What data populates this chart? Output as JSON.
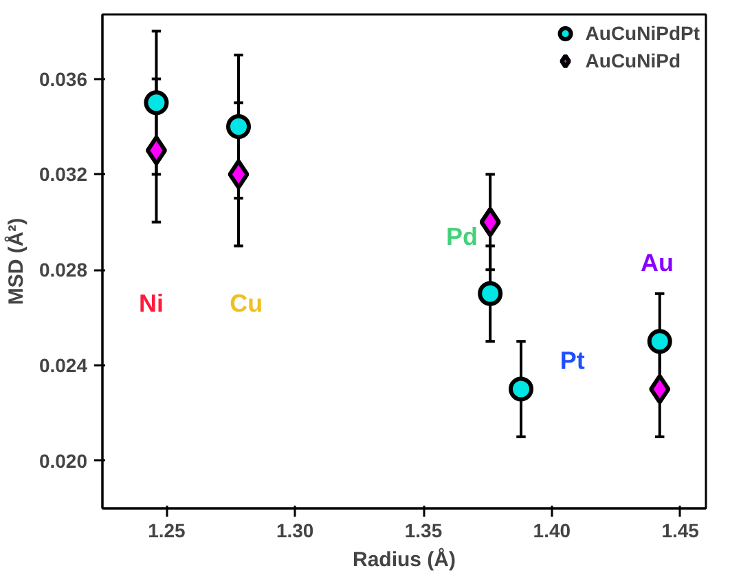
{
  "chart_data": {
    "type": "scatter",
    "xlabel": "Radius (Å)",
    "ylabel": "MSD (Å²)",
    "series": [
      {
        "name": "AuCuNiPdPt",
        "color": "#00e5e5",
        "marker": "circle",
        "x": [
          1.246,
          1.278,
          1.376,
          1.388,
          1.442
        ],
        "values": [
          0.035,
          0.034,
          0.027,
          0.023,
          0.025
        ],
        "errors": [
          0.003,
          0.003,
          0.002,
          0.002,
          0.002
        ]
      },
      {
        "name": "AuCuNiPd",
        "color": "#ff00ff",
        "marker": "diamond",
        "x": [
          1.246,
          1.278,
          1.376,
          1.442
        ],
        "values": [
          0.033,
          0.032,
          0.03,
          0.023
        ],
        "errors": [
          0.003,
          0.003,
          0.002,
          0.002
        ]
      }
    ],
    "annotations": [
      "Ni",
      "Cu",
      "Pd",
      "Pt",
      "Au"
    ],
    "xlim": [
      1.225,
      1.46
    ],
    "ylim": [
      0.018,
      0.0387
    ],
    "xticks": [
      {
        "value": 1.25,
        "label": "1.25"
      },
      {
        "value": 1.3,
        "label": "1.30"
      },
      {
        "value": 1.35,
        "label": "1.35"
      },
      {
        "value": 1.4,
        "label": "1.40"
      },
      {
        "value": 1.45,
        "label": "1.45"
      }
    ],
    "yticks": [
      {
        "value": 0.02,
        "label": "0.020"
      },
      {
        "value": 0.024,
        "label": "0.024"
      },
      {
        "value": 0.028,
        "label": "0.028"
      },
      {
        "value": 0.032,
        "label": "0.032"
      },
      {
        "value": 0.036,
        "label": "0.036"
      }
    ],
    "legend": "top right",
    "grid": false
  }
}
